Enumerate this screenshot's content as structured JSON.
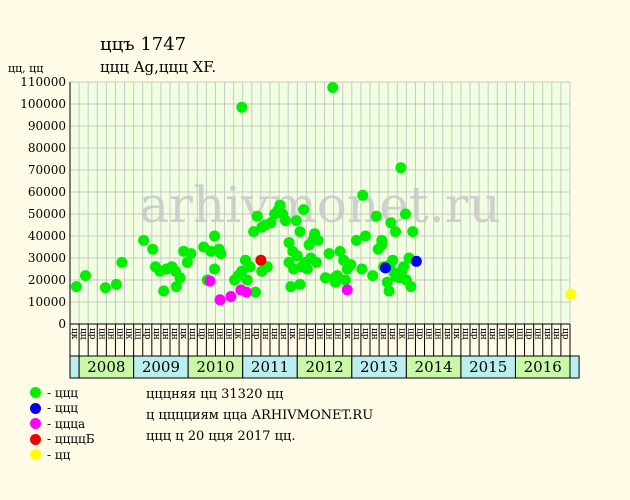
{
  "header": {
    "title": "ццъ 1747",
    "subtitle": "ццц Ag,ццц XF.",
    "y_unit": "цц, цц"
  },
  "watermark": "arhivmonet.ru",
  "notes": [
    "цццняя цц 31320 цц",
    "ц цццциям цца ARHIVMONET.RU",
    "ццц ц 20 цця 2017 цц."
  ],
  "legend": [
    {
      "label": "- ццц",
      "color": "#00ee00"
    },
    {
      "label": "- ццц",
      "color": "#0000ee"
    },
    {
      "label": "- ццца",
      "color": "#ff00ff"
    },
    {
      "label": "- ццццБ",
      "color": "#ee0000"
    },
    {
      "label": "- цц",
      "color": "#ffff00"
    }
  ],
  "colors": {
    "plot_bg": "#f0ffe0",
    "grid": "#c8c8c8",
    "year_band_a": "#bbeeee",
    "year_band_b": "#c8f8a8",
    "watermark": "#c8c8c8"
  },
  "chart_data": {
    "type": "scatter",
    "ylim": [
      0,
      110000
    ],
    "yticks": [
      0,
      10000,
      20000,
      30000,
      40000,
      50000,
      60000,
      70000,
      80000,
      90000,
      100000,
      110000
    ],
    "x_period_labels": [
      "цк",
      "цц",
      "цр",
      "цн",
      "цн",
      "цн",
      "цк",
      "цц",
      "цр",
      "цн",
      "цн",
      "цн",
      "цк",
      "цц",
      "цр",
      "цн",
      "цн",
      "цн",
      "цк",
      "цц",
      "цр",
      "цн",
      "цн",
      "цн",
      "цк",
      "цц",
      "цр",
      "цн",
      "цн",
      "цн",
      "цк",
      "цц",
      "цр",
      "цн",
      "цн",
      "цн",
      "цк",
      "цц",
      "цр",
      "цн",
      "цн",
      "цн",
      "цк",
      "цц",
      "цр",
      "цн",
      "цн",
      "цн",
      "цк",
      "цц",
      "цр",
      "цн",
      "цн",
      "цн",
      "цр"
    ],
    "x_years": [
      {
        "year": "",
        "start": 0,
        "span": 1
      },
      {
        "year": "2008",
        "start": 1,
        "span": 6
      },
      {
        "year": "2009",
        "start": 7,
        "span": 6
      },
      {
        "year": "2010",
        "start": 13,
        "span": 6
      },
      {
        "year": "2011",
        "start": 19,
        "span": 6
      },
      {
        "year": "2012",
        "start": 25,
        "span": 6
      },
      {
        "year": "2013",
        "start": 31,
        "span": 6
      },
      {
        "year": "2014",
        "start": 37,
        "span": 6
      },
      {
        "year": "2015",
        "start": 43,
        "span": 6
      },
      {
        "year": "2016",
        "start": 49,
        "span": 6
      },
      {
        "year": "",
        "start": 55,
        "span": 1
      }
    ],
    "series": [
      {
        "name": "- ццц",
        "color": "#00ee00",
        "points": [
          [
            0.2,
            17000
          ],
          [
            1.2,
            22000
          ],
          [
            3.4,
            16500
          ],
          [
            4.6,
            18000
          ],
          [
            5.2,
            28000
          ],
          [
            7.6,
            38000
          ],
          [
            8.6,
            34000
          ],
          [
            8.9,
            26000
          ],
          [
            9.4,
            24000
          ],
          [
            9.8,
            15000
          ],
          [
            10.1,
            25000
          ],
          [
            10.7,
            26000
          ],
          [
            11.2,
            17000
          ],
          [
            11.1,
            24000
          ],
          [
            11.6,
            21000
          ],
          [
            12.0,
            33000
          ],
          [
            12.4,
            28000
          ],
          [
            12.8,
            32000
          ],
          [
            14.2,
            35000
          ],
          [
            14.6,
            20000
          ],
          [
            15.0,
            33000
          ],
          [
            15.4,
            40000
          ],
          [
            15.4,
            25000
          ],
          [
            15.9,
            34000
          ],
          [
            16.1,
            32000
          ],
          [
            17.6,
            20000
          ],
          [
            18.0,
            22000
          ],
          [
            18.4,
            24000
          ],
          [
            18.4,
            98500
          ],
          [
            18.8,
            29000
          ],
          [
            19.0,
            20000
          ],
          [
            19.3,
            26000
          ],
          [
            19.7,
            42000
          ],
          [
            19.9,
            14500
          ],
          [
            20.1,
            49000
          ],
          [
            20.6,
            44000
          ],
          [
            20.6,
            24000
          ],
          [
            21.0,
            45000
          ],
          [
            21.2,
            26000
          ],
          [
            21.6,
            46000
          ],
          [
            22.0,
            50000
          ],
          [
            22.4,
            52000
          ],
          [
            22.6,
            54000
          ],
          [
            22.9,
            50000
          ],
          [
            23.2,
            47000
          ],
          [
            23.6,
            37000
          ],
          [
            23.6,
            28000
          ],
          [
            23.8,
            17000
          ],
          [
            24.0,
            33000
          ],
          [
            24.1,
            25000
          ],
          [
            24.4,
            47000
          ],
          [
            24.5,
            31000
          ],
          [
            24.8,
            18000
          ],
          [
            24.8,
            42000
          ],
          [
            25.0,
            26000
          ],
          [
            25.2,
            52000
          ],
          [
            25.4,
            28000
          ],
          [
            25.6,
            25000
          ],
          [
            25.8,
            36000
          ],
          [
            26.0,
            30000
          ],
          [
            26.2,
            38000
          ],
          [
            26.4,
            41000
          ],
          [
            26.6,
            28000
          ],
          [
            26.8,
            38000
          ],
          [
            27.6,
            21000
          ],
          [
            28.0,
            32000
          ],
          [
            28.4,
            107500
          ],
          [
            28.6,
            21000
          ],
          [
            28.7,
            19000
          ],
          [
            28.9,
            22000
          ],
          [
            29.2,
            33000
          ],
          [
            29.6,
            29000
          ],
          [
            29.8,
            20000
          ],
          [
            30.0,
            25000
          ],
          [
            30.4,
            27000
          ],
          [
            31.0,
            38000
          ],
          [
            31.6,
            25000
          ],
          [
            31.7,
            58500
          ],
          [
            32.0,
            40000
          ],
          [
            32.8,
            22000
          ],
          [
            33.2,
            49000
          ],
          [
            33.4,
            34000
          ],
          [
            33.8,
            38000
          ],
          [
            33.8,
            36000
          ],
          [
            34.0,
            26000
          ],
          [
            34.4,
            19000
          ],
          [
            34.6,
            15000
          ],
          [
            34.7,
            27000
          ],
          [
            34.8,
            46000
          ],
          [
            35.0,
            29000
          ],
          [
            35.2,
            23000
          ],
          [
            35.3,
            42000
          ],
          [
            35.4,
            21500
          ],
          [
            35.8,
            21000
          ],
          [
            35.9,
            71000
          ],
          [
            36.0,
            24000
          ],
          [
            36.2,
            26000
          ],
          [
            36.4,
            50000
          ],
          [
            36.5,
            20000
          ],
          [
            36.8,
            30000
          ],
          [
            37.0,
            17000
          ],
          [
            37.2,
            42000
          ]
        ]
      },
      {
        "name": "- ццц",
        "color": "#0000ee",
        "points": [
          [
            34.2,
            25500
          ],
          [
            37.6,
            28500
          ]
        ]
      },
      {
        "name": "- ццца",
        "color": "#ff00ff",
        "points": [
          [
            14.9,
            19500
          ],
          [
            16.0,
            11000
          ],
          [
            17.2,
            12500
          ],
          [
            18.3,
            15500
          ],
          [
            18.9,
            14500
          ],
          [
            30.0,
            15500
          ]
        ]
      },
      {
        "name": "- ццццБ",
        "color": "#ee0000",
        "points": [
          [
            20.5,
            29000
          ]
        ]
      },
      {
        "name": "- цц",
        "color": "#ffff00",
        "points": [
          [
            54.6,
            13500
          ]
        ]
      }
    ]
  }
}
